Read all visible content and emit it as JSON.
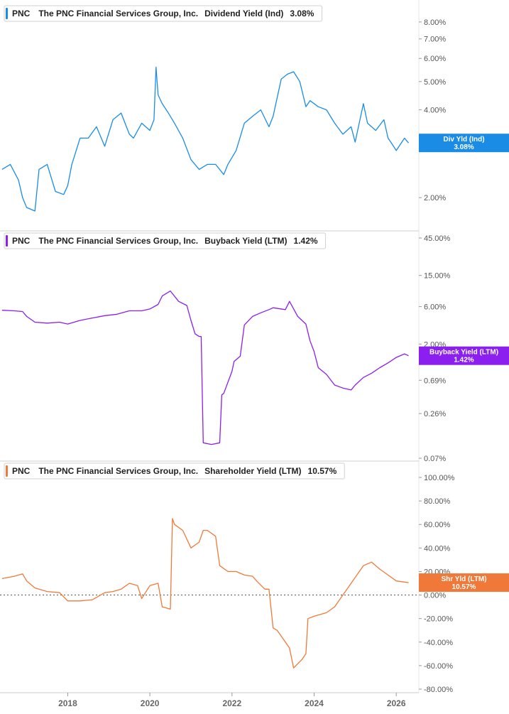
{
  "chart_data": [
    {
      "type": "line",
      "ticker": "PNC",
      "company": "The PNC Financial Services Group, Inc.",
      "metric": "Dividend Yield (Ind)",
      "last_value_label": "3.08%",
      "badge_label": "Div Yld (Ind)",
      "color": "#1a8ce6",
      "scale": "log",
      "y_ticks": [
        "8.00%",
        "7.00%",
        "6.00%",
        "5.00%",
        "4.00%",
        "3.00%",
        "2.00%"
      ],
      "y_tick_values": [
        8,
        7,
        6,
        5,
        4,
        3,
        2
      ],
      "ylim": [
        1.6,
        9.2
      ],
      "grid": false,
      "legend": "top-left",
      "x": [
        2016.4,
        2016.6,
        2016.8,
        2016.9,
        2017.0,
        2017.2,
        2017.3,
        2017.5,
        2017.7,
        2017.9,
        2018.0,
        2018.1,
        2018.3,
        2018.5,
        2018.7,
        2018.9,
        2019.1,
        2019.3,
        2019.5,
        2019.6,
        2019.8,
        2020.0,
        2020.1,
        2020.15,
        2020.2,
        2020.3,
        2020.45,
        2020.6,
        2020.8,
        2021.0,
        2021.2,
        2021.4,
        2021.6,
        2021.8,
        2021.9,
        2022.1,
        2022.3,
        2022.5,
        2022.7,
        2022.9,
        2023.0,
        2023.2,
        2023.35,
        2023.5,
        2023.65,
        2023.8,
        2023.9,
        2024.1,
        2024.3,
        2024.5,
        2024.7,
        2024.9,
        2025.0,
        2025.2,
        2025.3,
        2025.5,
        2025.7,
        2025.8,
        2025.9,
        2026.0,
        2026.2,
        2026.3
      ],
      "y": [
        2.5,
        2.6,
        2.3,
        2.0,
        1.85,
        1.8,
        2.5,
        2.6,
        2.1,
        2.05,
        2.2,
        2.6,
        3.2,
        3.2,
        3.5,
        3.0,
        3.7,
        3.9,
        3.3,
        3.2,
        3.6,
        3.4,
        3.7,
        5.6,
        4.5,
        4.2,
        3.9,
        3.6,
        3.2,
        2.7,
        2.5,
        2.6,
        2.6,
        2.4,
        2.6,
        2.9,
        3.6,
        3.8,
        4.0,
        3.5,
        3.8,
        5.1,
        5.3,
        5.4,
        5.0,
        4.1,
        4.3,
        4.1,
        4.0,
        3.6,
        3.3,
        3.5,
        3.1,
        4.2,
        3.6,
        3.4,
        3.7,
        3.2,
        3.05,
        2.9,
        3.2,
        3.08
      ]
    },
    {
      "type": "line",
      "ticker": "PNC",
      "company": "The PNC Financial Services Group, Inc.",
      "metric": "Buyback Yield (LTM)",
      "last_value_label": "1.42%",
      "badge_label": "Buyback Yield (LTM)",
      "color": "#8a1ff0",
      "scale": "log",
      "y_ticks": [
        "45.00%",
        "15.00%",
        "6.00%",
        "2.00%",
        "0.69%",
        "0.26%",
        "0.07%"
      ],
      "y_tick_values": [
        45,
        15,
        6,
        2,
        0.69,
        0.26,
        0.07
      ],
      "ylim": [
        0.07,
        45
      ],
      "grid": false,
      "legend": "top-left",
      "x": [
        2016.4,
        2016.7,
        2016.9,
        2017.0,
        2017.2,
        2017.5,
        2017.8,
        2018.0,
        2018.3,
        2018.6,
        2018.9,
        2019.2,
        2019.5,
        2019.8,
        2020.0,
        2020.2,
        2020.3,
        2020.5,
        2020.7,
        2020.9,
        2021.0,
        2021.1,
        2021.2,
        2021.25,
        2021.3,
        2021.5,
        2021.7,
        2021.75,
        2021.8,
        2022.0,
        2022.05,
        2022.2,
        2022.3,
        2022.5,
        2022.7,
        2022.9,
        2023.0,
        2023.3,
        2023.4,
        2023.6,
        2023.8,
        2023.9,
        2024.0,
        2024.1,
        2024.3,
        2024.5,
        2024.7,
        2024.9,
        2025.0,
        2025.2,
        2025.4,
        2025.6,
        2025.8,
        2026.0,
        2026.2,
        2026.3
      ],
      "y": [
        5.4,
        5.3,
        5.2,
        4.5,
        3.8,
        3.7,
        3.8,
        3.6,
        4.0,
        4.3,
        4.6,
        4.8,
        5.3,
        5.3,
        5.6,
        6.4,
        8.2,
        9.5,
        7.0,
        6.2,
        4.0,
        2.7,
        2.5,
        2.5,
        0.11,
        0.105,
        0.11,
        0.45,
        0.47,
        0.9,
        1.2,
        1.4,
        3.5,
        4.5,
        5.0,
        5.5,
        5.8,
        5.5,
        7.0,
        4.5,
        3.6,
        2.2,
        1.6,
        1.0,
        0.82,
        0.6,
        0.55,
        0.52,
        0.6,
        0.75,
        0.85,
        1.0,
        1.15,
        1.35,
        1.5,
        1.42
      ]
    },
    {
      "type": "line",
      "ticker": "PNC",
      "company": "The PNC Financial Services Group, Inc.",
      "metric": "Shareholder Yield (LTM)",
      "last_value_label": "10.57%",
      "badge_label": "Shr Yld (LTM)",
      "color": "#f0793a",
      "scale": "linear",
      "y_ticks": [
        "100.00%",
        "80.00%",
        "60.00%",
        "40.00%",
        "20.00%",
        "0.00%",
        "-20.00%",
        "-40.00%",
        "-60.00%",
        "-80.00%"
      ],
      "y_tick_values": [
        100,
        80,
        60,
        40,
        20,
        0,
        -20,
        -40,
        -60,
        -80
      ],
      "ylim": [
        -80,
        100
      ],
      "zero_line": true,
      "grid": false,
      "legend": "top-left",
      "x": [
        2016.4,
        2016.7,
        2016.9,
        2017.0,
        2017.2,
        2017.5,
        2017.8,
        2018.0,
        2018.3,
        2018.6,
        2018.9,
        2019.1,
        2019.3,
        2019.5,
        2019.7,
        2019.8,
        2020.0,
        2020.2,
        2020.3,
        2020.5,
        2020.55,
        2020.6,
        2020.8,
        2021.0,
        2021.2,
        2021.3,
        2021.4,
        2021.6,
        2021.7,
        2021.9,
        2022.1,
        2022.3,
        2022.5,
        2022.6,
        2022.8,
        2022.9,
        2023.0,
        2023.1,
        2023.3,
        2023.4,
        2023.5,
        2023.7,
        2023.8,
        2023.85,
        2024.0,
        2024.3,
        2024.5,
        2024.6,
        2024.8,
        2025.0,
        2025.2,
        2025.4,
        2025.6,
        2025.8,
        2026.0,
        2026.2,
        2026.3
      ],
      "y": [
        14,
        16,
        18,
        12,
        6,
        3,
        2,
        -5,
        -5,
        -4,
        2,
        3,
        5,
        10,
        8,
        -3,
        8,
        10,
        -10,
        -12,
        65,
        60,
        55,
        40,
        45,
        55,
        55,
        50,
        25,
        20,
        20,
        17,
        16,
        12,
        5,
        5,
        -28,
        -30,
        -40,
        -45,
        -62,
        -55,
        -50,
        -20,
        -18,
        -15,
        -10,
        -5,
        5,
        15,
        25,
        28,
        22,
        17,
        12,
        11,
        10.57
      ]
    }
  ],
  "x_axis": {
    "ticks": [
      "2018",
      "2020",
      "2022",
      "2024",
      "2026"
    ],
    "tick_values": [
      2018,
      2020,
      2022,
      2024,
      2026
    ]
  }
}
